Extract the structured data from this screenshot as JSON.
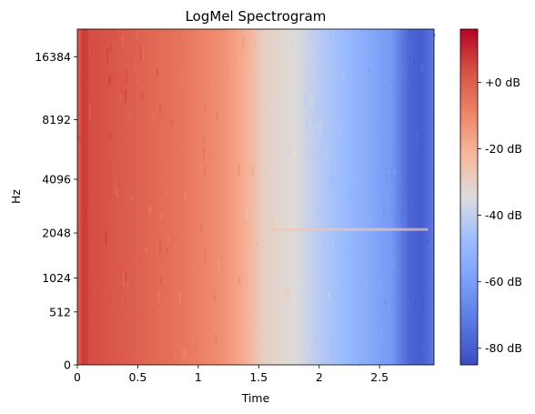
{
  "chart_data": {
    "type": "heatmap",
    "title": "LogMel Spectrogram",
    "xlabel": "Time",
    "ylabel": "Hz",
    "x_ticks": [
      "0",
      "0.5",
      "1",
      "1.5",
      "2",
      "2.5"
    ],
    "x_tick_values": [
      0,
      0.5,
      1,
      1.5,
      2,
      2.5
    ],
    "xlim": [
      0,
      2.95
    ],
    "y_scale": "mel",
    "y_ticks": [
      "0",
      "512",
      "1024",
      "2048",
      "4096",
      "8192",
      "16384"
    ],
    "y_tick_values": [
      0,
      512,
      1024,
      2048,
      4096,
      8192,
      16384
    ],
    "ylim": [
      0,
      22050
    ],
    "colormap": "coolwarm",
    "colorbar": {
      "label_ticks": [
        "+0 dB",
        "-20 dB",
        "-40 dB",
        "-60 dB",
        "-80 dB"
      ],
      "tick_values": [
        0,
        -20,
        -40,
        -60,
        -80
      ],
      "range": [
        -85,
        16
      ]
    },
    "intensity_profile_db": {
      "time": [
        0,
        0.05,
        0.1,
        0.3,
        0.6,
        0.9,
        1.2,
        1.4,
        1.55,
        1.8,
        2.0,
        2.2,
        2.4,
        2.6,
        2.75,
        2.85,
        2.95
      ],
      "level": [
        0,
        6,
        4,
        2,
        -2,
        -6,
        -12,
        -20,
        -30,
        -34,
        -42,
        -48,
        -55,
        -62,
        -78,
        -80,
        -72
      ]
    }
  }
}
